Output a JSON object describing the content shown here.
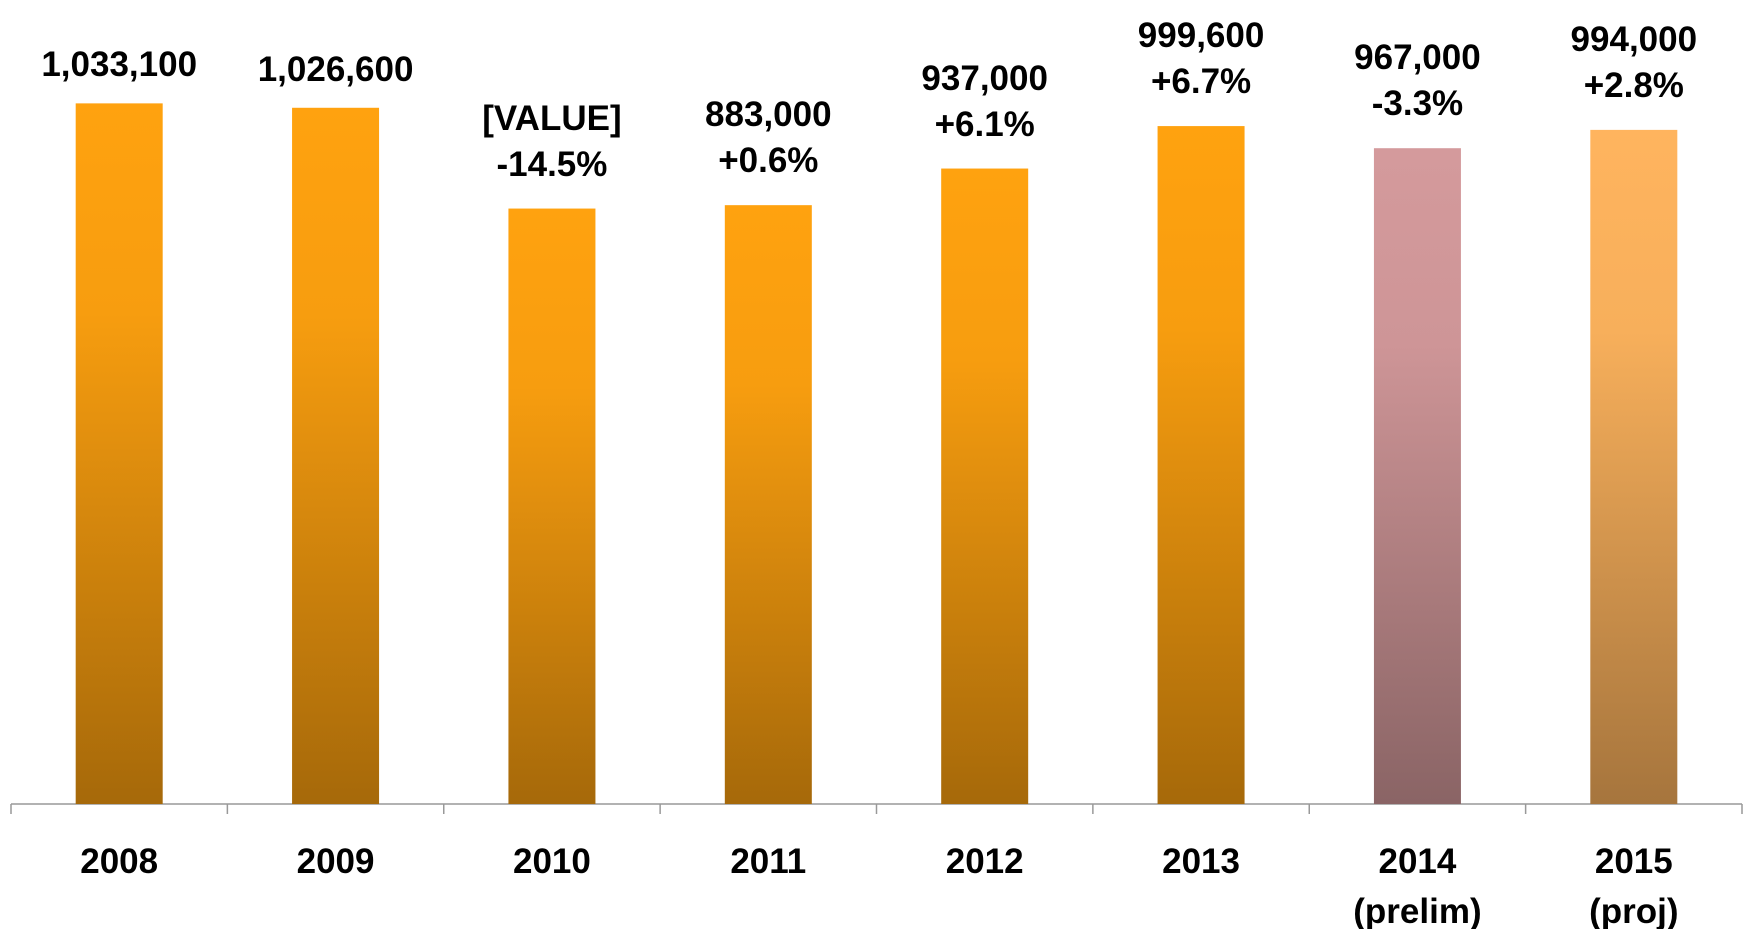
{
  "chart_data": {
    "type": "bar",
    "categories": [
      "2008",
      "2009",
      "2010",
      "2011",
      "2012",
      "2013",
      "2014\n(prelim)",
      "2015 (proj)"
    ],
    "values": [
      1033100,
      1026600,
      878000,
      883000,
      937000,
      999600,
      967000,
      994000
    ],
    "value_labels": [
      "1,033,100",
      "1,026,600",
      "[VALUE]",
      "883,000",
      "937,000",
      "999,600",
      "967,000",
      "994,000"
    ],
    "changes": [
      null,
      null,
      "-14.5%",
      "+0.6%",
      "+6.1%",
      "+6.7%",
      "-3.3%",
      "+2.8%"
    ],
    "colors": [
      "#ffa20f",
      "#ffa20f",
      "#ffa20f",
      "#ffa20f",
      "#ffa20f",
      "#ffa20f",
      "#d49a9c",
      "#ffb45e"
    ],
    "ylim": [
      0,
      1100000
    ],
    "grid": false
  }
}
